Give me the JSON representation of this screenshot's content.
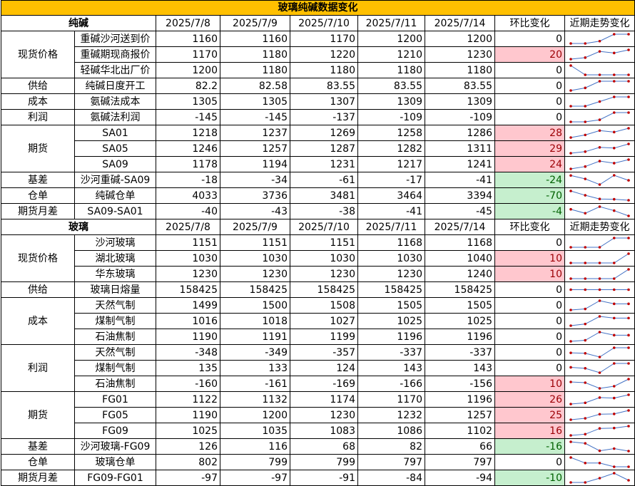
{
  "title": "玻璃纯碱数据变化",
  "dates": [
    "2025/7/8",
    "2025/7/9",
    "2025/7/10",
    "2025/7/11",
    "2025/7/14"
  ],
  "change_header": "环比变化",
  "trend_header": "近期走势变化",
  "colors": {
    "title_bg": "#ffc000",
    "up_bg": "#ffc7ce",
    "up_text": "#9c0006",
    "down_bg": "#c6efce",
    "down_text": "#006100",
    "spark_line": "#4472c4",
    "spark_dot": "#c00000"
  },
  "sections": [
    {
      "name": "纯碱",
      "groups": [
        {
          "category": "现货价格",
          "rows": [
            {
              "item": "重碱沙河送到价",
              "values": [
                "1160",
                "1160",
                "1170",
                "1200",
                "1200"
              ],
              "change": "0"
            },
            {
              "item": "重碱期现商报价",
              "values": [
                "1170",
                "1180",
                "1220",
                "1210",
                "1230"
              ],
              "change": "20"
            },
            {
              "item": "轻碱华北出厂价",
              "values": [
                "1200",
                "1180",
                "1180",
                "1180",
                "1180"
              ],
              "change": "0"
            }
          ]
        },
        {
          "category": "供给",
          "rows": [
            {
              "item": "纯碱日度开工",
              "values": [
                "82.2",
                "82.58",
                "83.55",
                "83.55",
                "83.55"
              ],
              "change": "0"
            }
          ]
        },
        {
          "category": "成本",
          "rows": [
            {
              "item": "氨碱法成本",
              "values": [
                "1305",
                "1305",
                "1307",
                "1309",
                "1309"
              ],
              "change": "0"
            }
          ]
        },
        {
          "category": "利润",
          "rows": [
            {
              "item": "氨碱法利润",
              "values": [
                "-145",
                "-145",
                "-137",
                "-109",
                "-109"
              ],
              "change": "0"
            }
          ]
        },
        {
          "category": "期货",
          "rows": [
            {
              "item": "SA01",
              "values": [
                "1218",
                "1237",
                "1269",
                "1258",
                "1286"
              ],
              "change": "28"
            },
            {
              "item": "SA05",
              "values": [
                "1246",
                "1257",
                "1287",
                "1282",
                "1311"
              ],
              "change": "29"
            },
            {
              "item": "SA09",
              "values": [
                "1178",
                "1194",
                "1231",
                "1217",
                "1241"
              ],
              "change": "24"
            }
          ]
        },
        {
          "category": "基差",
          "rows": [
            {
              "item": "沙河重碱-SA09",
              "values": [
                "-18",
                "-34",
                "-61",
                "-17",
                "-41"
              ],
              "change": "-24"
            }
          ]
        },
        {
          "category": "仓单",
          "rows": [
            {
              "item": "纯碱仓单",
              "values": [
                "4033",
                "3736",
                "3481",
                "3464",
                "3394"
              ],
              "change": "-70"
            }
          ]
        },
        {
          "category": "期货月差",
          "rows": [
            {
              "item": "SA09-SA01",
              "values": [
                "-40",
                "-43",
                "-38",
                "-41",
                "-45"
              ],
              "change": "-4"
            }
          ]
        }
      ]
    },
    {
      "name": "玻璃",
      "groups": [
        {
          "category": "现货价格",
          "rows": [
            {
              "item": "沙河玻璃",
              "values": [
                "1151",
                "1151",
                "1151",
                "1168",
                "1168"
              ],
              "change": "0"
            },
            {
              "item": "湖北玻璃",
              "values": [
                "1030",
                "1030",
                "1030",
                "1030",
                "1040"
              ],
              "change": "10"
            },
            {
              "item": "华东玻璃",
              "values": [
                "1230",
                "1230",
                "1230",
                "1230",
                "1240"
              ],
              "change": "10"
            }
          ]
        },
        {
          "category": "供给",
          "rows": [
            {
              "item": "玻璃日熔量",
              "values": [
                "158425",
                "158425",
                "158425",
                "158425",
                "158425"
              ],
              "change": "0"
            }
          ]
        },
        {
          "category": "成本",
          "rows": [
            {
              "item": "天然气制",
              "values": [
                "1499",
                "1500",
                "1508",
                "1505",
                "1505"
              ],
              "change": "0"
            },
            {
              "item": "煤制气制",
              "values": [
                "1016",
                "1018",
                "1027",
                "1025",
                "1025"
              ],
              "change": "0"
            },
            {
              "item": "石油焦制",
              "values": [
                "1190",
                "1191",
                "1199",
                "1196",
                "1196"
              ],
              "change": "0"
            }
          ]
        },
        {
          "category": "利润",
          "rows": [
            {
              "item": "天然气制",
              "values": [
                "-348",
                "-349",
                "-357",
                "-337",
                "-337"
              ],
              "change": "0"
            },
            {
              "item": "煤制气制",
              "values": [
                "135",
                "133",
                "124",
                "143",
                "143"
              ],
              "change": "0"
            },
            {
              "item": "石油焦制",
              "values": [
                "-160",
                "-161",
                "-169",
                "-166",
                "-156"
              ],
              "change": "10"
            }
          ]
        },
        {
          "category": "期货",
          "rows": [
            {
              "item": "FG01",
              "values": [
                "1122",
                "1132",
                "1174",
                "1170",
                "1196"
              ],
              "change": "26"
            },
            {
              "item": "FG05",
              "values": [
                "1190",
                "1200",
                "1230",
                "1232",
                "1257"
              ],
              "change": "25"
            },
            {
              "item": "FG09",
              "values": [
                "1025",
                "1035",
                "1083",
                "1086",
                "1102"
              ],
              "change": "16"
            }
          ]
        },
        {
          "category": "基差",
          "rows": [
            {
              "item": "沙河玻璃-FG09",
              "values": [
                "126",
                "116",
                "68",
                "82",
                "66"
              ],
              "change": "-16"
            }
          ]
        },
        {
          "category": "仓单",
          "rows": [
            {
              "item": "玻璃仓单",
              "values": [
                "802",
                "799",
                "799",
                "797",
                "797"
              ],
              "change": "0"
            }
          ]
        },
        {
          "category": "期货月差",
          "rows": [
            {
              "item": "FG09-FG01",
              "values": [
                "-97",
                "-97",
                "-91",
                "-84",
                "-94"
              ],
              "change": "-10"
            }
          ]
        }
      ]
    }
  ]
}
